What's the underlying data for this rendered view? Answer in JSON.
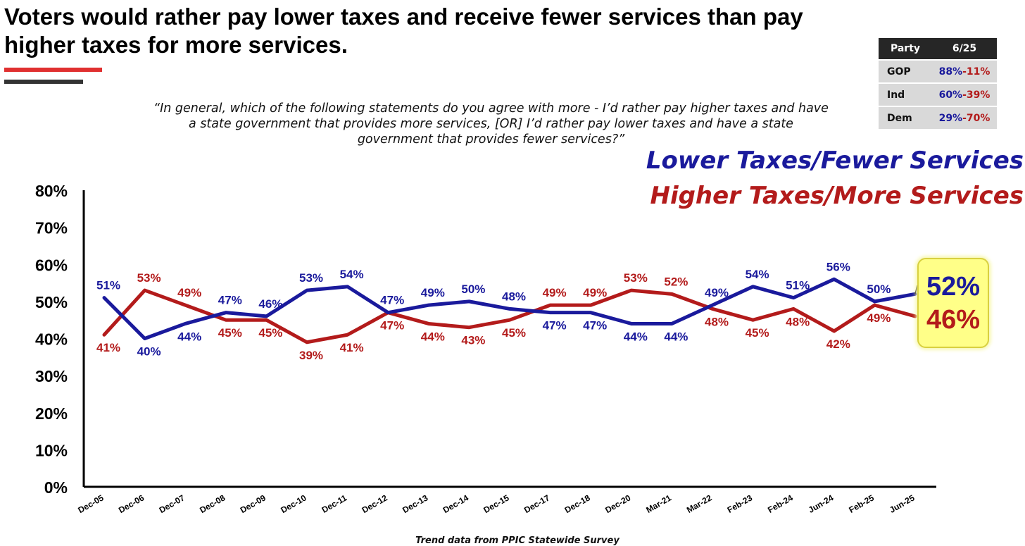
{
  "title": "Voters would rather pay lower taxes and receive fewer services than pay higher taxes for more services.",
  "question": "“In general, which of the following statements do you agree with more - I’d rather pay higher taxes and have a state government that provides more services, [OR] I’d rather pay lower taxes and have a state government that provides fewer services?”",
  "legend": {
    "lower": "Lower Taxes/Fewer Services",
    "higher": "Higher Taxes/More Services"
  },
  "party_table": {
    "header_party": "Party",
    "header_date": "6/25",
    "rows": [
      {
        "party": "GOP",
        "lower": "88%",
        "sep": "-",
        "higher": "11%"
      },
      {
        "party": "Ind",
        "lower": "60%",
        "sep": "-",
        "higher": "39%"
      },
      {
        "party": "Dem",
        "lower": "29%",
        "sep": "-",
        "higher": "70%"
      }
    ]
  },
  "callout": {
    "lower": "52%",
    "higher": "46%"
  },
  "footer": "Trend data from PPIC Statewide Survey",
  "colors": {
    "lower": "#1a1a9c",
    "higher": "#b31b1b",
    "callout_bg": "#ffff88"
  },
  "chart_data": {
    "type": "line",
    "categories": [
      "Dec-05",
      "Dec-06",
      "Dec-07",
      "Dec-08",
      "Dec-09",
      "Dec-10",
      "Dec-11",
      "Dec-12",
      "Dec-13",
      "Dec-14",
      "Dec-15",
      "Dec-17",
      "Dec-18",
      "Dec-20",
      "Mar-21",
      "Mar-22",
      "Feb-23",
      "Feb-24",
      "Jun-24",
      "Feb-25",
      "Jun-25"
    ],
    "y_ticks": [
      "0%",
      "10%",
      "20%",
      "30%",
      "40%",
      "50%",
      "60%",
      "70%",
      "80%"
    ],
    "ylim": [
      0,
      80
    ],
    "grid": false,
    "series": [
      {
        "name": "Lower Taxes/Fewer Services",
        "color": "#1a1a9c",
        "values": [
          51,
          40,
          44,
          47,
          46,
          53,
          54,
          47,
          49,
          50,
          48,
          47,
          47,
          44,
          44,
          49,
          54,
          51,
          56,
          50,
          52
        ]
      },
      {
        "name": "Higher Taxes/More Services",
        "color": "#b31b1b",
        "values": [
          41,
          53,
          49,
          45,
          45,
          39,
          41,
          47,
          44,
          43,
          45,
          49,
          49,
          53,
          52,
          48,
          45,
          48,
          42,
          49,
          46
        ]
      }
    ],
    "data_labels": {
      "lower": [
        "51%",
        "40%",
        "44%",
        "47%",
        "46%",
        "53%",
        "54%",
        "47%",
        "49%",
        "50%",
        "48%",
        "47%",
        "47%",
        "44%",
        "44%",
        "49%",
        "54%",
        "51%",
        "56%",
        "50%",
        ""
      ],
      "higher": [
        "41%",
        "53%",
        "49%",
        "45%",
        "45%",
        "39%",
        "41%",
        "47%",
        "44%",
        "43%",
        "45%",
        "49%",
        "49%",
        "53%",
        "52%",
        "48%",
        "45%",
        "48%",
        "42%",
        "49%",
        ""
      ]
    }
  }
}
